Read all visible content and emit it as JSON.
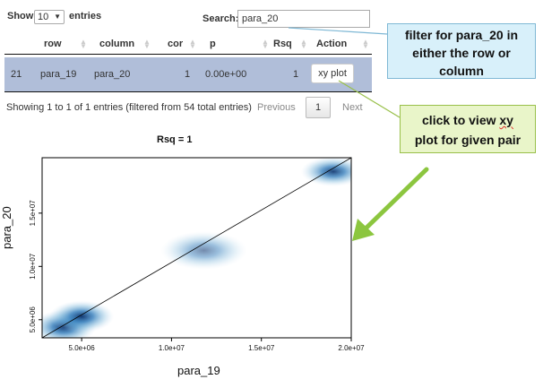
{
  "length": {
    "show_label": "Show",
    "value": "10",
    "entries_label": "entries"
  },
  "search": {
    "label": "Search:",
    "value": "para_20"
  },
  "table": {
    "headers": [
      "row",
      "column",
      "cor",
      "p",
      "Rsq",
      "Action"
    ],
    "rows": [
      {
        "index": "21",
        "row": "para_19",
        "column": "para_20",
        "cor": "1",
        "p": "0.00e+00",
        "rsq": "1",
        "action": "xy plot"
      }
    ]
  },
  "info": "Showing 1 to 1 of 1 entries (filtered from 54 total entries)",
  "paging": {
    "previous": "Previous",
    "current": "1",
    "next": "Next"
  },
  "callouts": {
    "filter": {
      "line1": "filter for para_20 in",
      "line2": "either the row or",
      "line3": "column"
    },
    "click": {
      "line1_a": "click to view ",
      "line1_b": "xy",
      "line2": "plot for given pair"
    }
  },
  "colors": {
    "row_highlight": "#b0bed9",
    "callout_blue": "#d8f0fa",
    "callout_green": "#e9f5c9",
    "arrow_green": "#8cc63f",
    "density_blue": "#08519c"
  },
  "chart_data": {
    "type": "scatter",
    "title": "Rsq =  1",
    "xlabel": "para_19",
    "ylabel": "para_20",
    "xlim": [
      2800000,
      20000000
    ],
    "ylim": [
      3300000,
      20200000
    ],
    "x_ticks": [
      {
        "v": 5000000,
        "label": "5.0e+06"
      },
      {
        "v": 10000000,
        "label": "1.0e+07"
      },
      {
        "v": 15000000,
        "label": "1.5e+07"
      },
      {
        "v": 20000000,
        "label": "2.0e+07"
      }
    ],
    "y_ticks": [
      {
        "v": 5000000,
        "label": "5.0e+06"
      },
      {
        "v": 10000000,
        "label": "1.0e+07"
      },
      {
        "v": 15000000,
        "label": "1.5e+07"
      }
    ],
    "clusters": [
      {
        "x": 4000000,
        "y": 4300000,
        "sx": 900000,
        "sy": 800000,
        "w": 1.0
      },
      {
        "x": 5000000,
        "y": 5300000,
        "sx": 900000,
        "sy": 750000,
        "w": 1.0
      },
      {
        "x": 11800000,
        "y": 11500000,
        "sx": 1200000,
        "sy": 900000,
        "w": 0.6
      },
      {
        "x": 19000000,
        "y": 18900000,
        "sx": 900000,
        "sy": 700000,
        "w": 0.95
      }
    ],
    "fit_line": [
      [
        2800000,
        3300000
      ],
      [
        20000000,
        20200000
      ]
    ]
  }
}
